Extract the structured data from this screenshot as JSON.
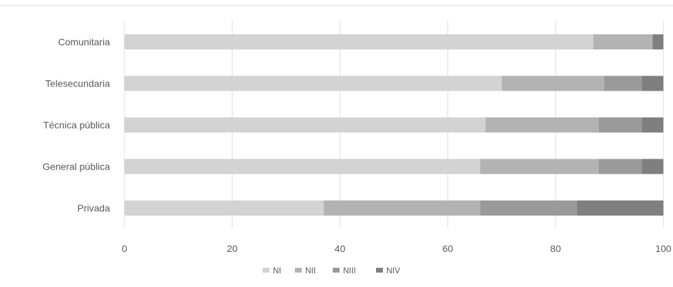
{
  "chart_data": {
    "type": "bar",
    "orientation": "horizontal",
    "stacked": true,
    "categories": [
      "Comunitaria",
      "Telesecundaria",
      "Técnica pública",
      "General pública",
      "Privada"
    ],
    "series": [
      {
        "name": "NI",
        "values": [
          87,
          70,
          67,
          66,
          37
        ],
        "color": "#d3d3d3"
      },
      {
        "name": "NII",
        "values": [
          11,
          19,
          21,
          22,
          29
        ],
        "color": "#b3b3b3"
      },
      {
        "name": "NIII",
        "values": [
          0,
          7,
          8,
          8,
          18
        ],
        "color": "#9a9a9a"
      },
      {
        "name": "NIV",
        "values": [
          2,
          4,
          4,
          4,
          16
        ],
        "color": "#7f7f7f"
      }
    ],
    "x_ticks": [
      "0",
      "20",
      "40",
      "60",
      "80",
      "100"
    ],
    "xlim": [
      0,
      100
    ],
    "grid": true,
    "legend_position": "bottom",
    "title": "",
    "xlabel": "",
    "ylabel": ""
  }
}
